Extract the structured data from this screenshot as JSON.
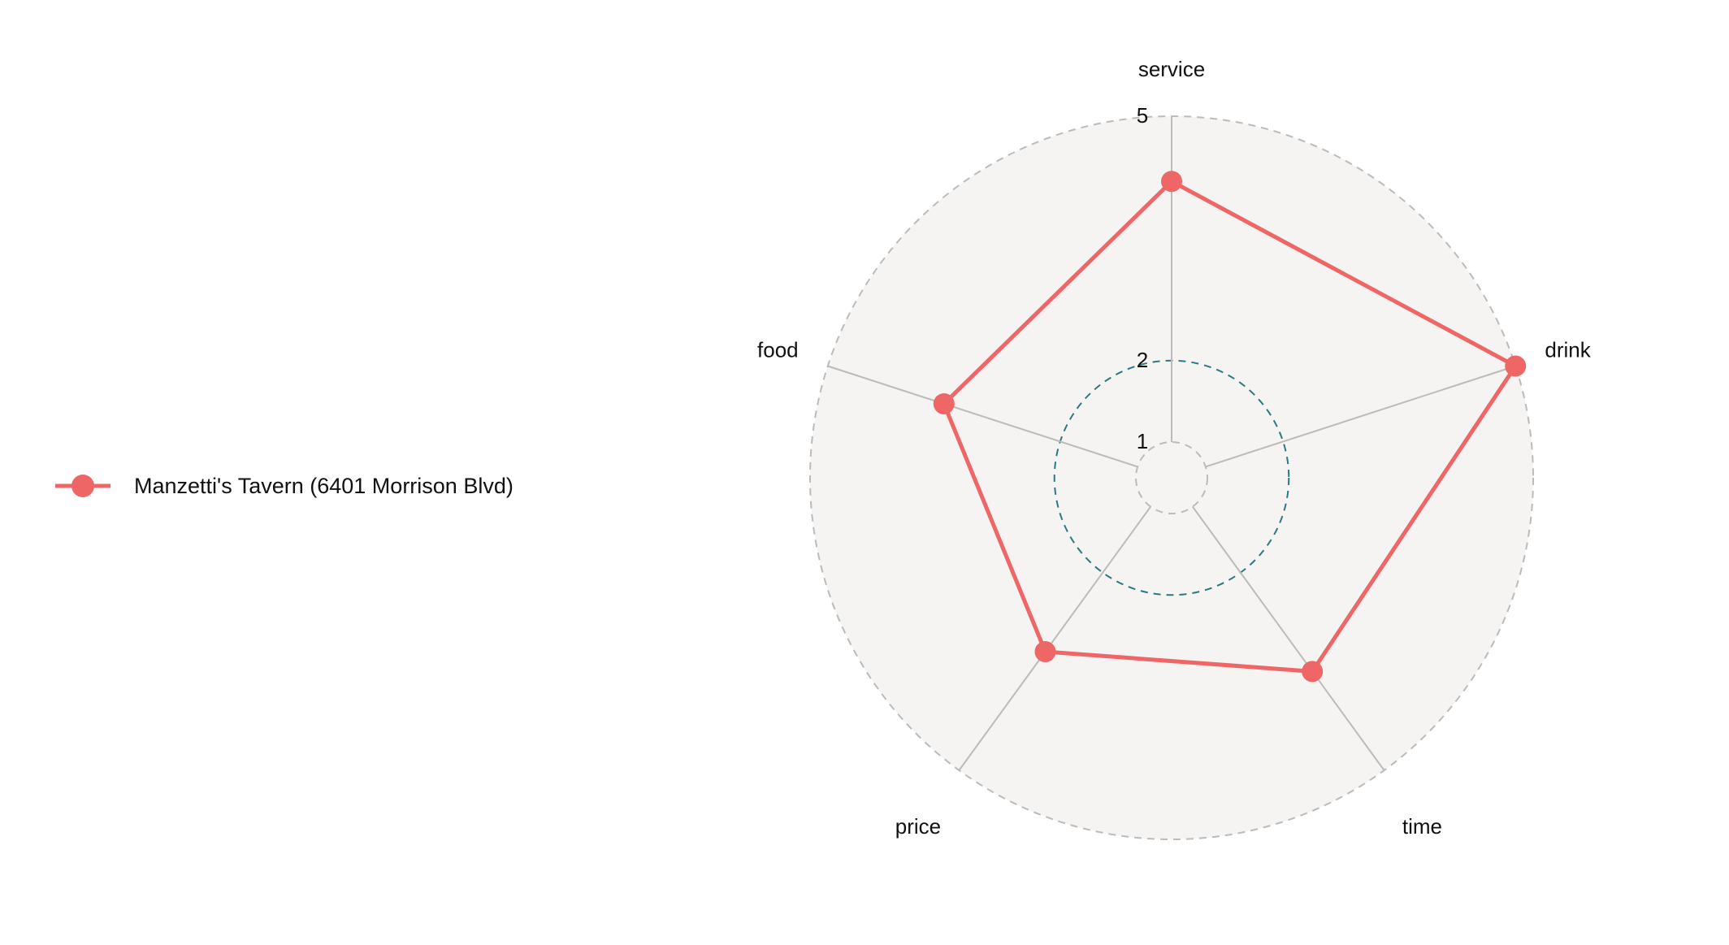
{
  "chart_data": {
    "type": "radar",
    "axes": [
      "service",
      "drink",
      "time",
      "price",
      "food"
    ],
    "scale": {
      "ticks": [
        1,
        2,
        5
      ],
      "range": [
        1,
        5
      ]
    },
    "series": [
      {
        "name": "Manzetti's Tavern (6401 Morrison Blvd)",
        "color": "#ee6666",
        "values": [
          4.2,
          5.0,
          3.5,
          3.2,
          3.5
        ]
      }
    ],
    "legend_position": "left",
    "colors": {
      "plot_background": "#f6f4f2",
      "grid_outer": "#bbbbbb",
      "grid_mid": "#2c7784",
      "spoke": "#bbbbbb"
    }
  }
}
